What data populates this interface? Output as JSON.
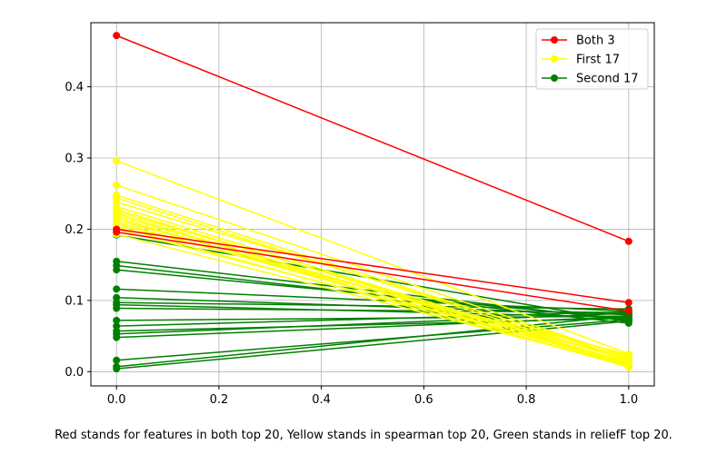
{
  "chart_data": {
    "type": "line",
    "x": [
      0,
      1
    ],
    "xlim": [
      -0.05,
      1.05
    ],
    "ylim": [
      -0.02,
      0.49
    ],
    "xticks": [
      "0.0",
      "0.2",
      "0.4",
      "0.6",
      "0.8",
      "1.0"
    ],
    "yticks": [
      "0.0",
      "0.1",
      "0.2",
      "0.3",
      "0.4"
    ],
    "grid": true,
    "legend_position": "top-right",
    "legend": [
      {
        "label": "Both 3",
        "color": "#ff0000"
      },
      {
        "label": "First 17",
        "color": "#ffff00"
      },
      {
        "label": "Second 17",
        "color": "#008000"
      }
    ],
    "series": [
      {
        "group": "Both 3",
        "color": "#ff0000",
        "values": [
          0.472,
          0.183
        ]
      },
      {
        "group": "Both 3",
        "color": "#ff0000",
        "values": [
          0.2,
          0.097
        ]
      },
      {
        "group": "Both 3",
        "color": "#ff0000",
        "values": [
          0.196,
          0.085
        ]
      },
      {
        "group": "First 17",
        "color": "#ffff00",
        "values": [
          0.296,
          0.025
        ]
      },
      {
        "group": "First 17",
        "color": "#ffff00",
        "values": [
          0.262,
          0.02
        ]
      },
      {
        "group": "First 17",
        "color": "#ffff00",
        "values": [
          0.248,
          0.018
        ]
      },
      {
        "group": "First 17",
        "color": "#ffff00",
        "values": [
          0.244,
          0.015
        ]
      },
      {
        "group": "First 17",
        "color": "#ffff00",
        "values": [
          0.238,
          0.022
        ]
      },
      {
        "group": "First 17",
        "color": "#ffff00",
        "values": [
          0.232,
          0.012
        ]
      },
      {
        "group": "First 17",
        "color": "#ffff00",
        "values": [
          0.228,
          0.01
        ]
      },
      {
        "group": "First 17",
        "color": "#ffff00",
        "values": [
          0.225,
          0.016
        ]
      },
      {
        "group": "First 17",
        "color": "#ffff00",
        "values": [
          0.222,
          0.008
        ]
      },
      {
        "group": "First 17",
        "color": "#ffff00",
        "values": [
          0.219,
          0.013
        ]
      },
      {
        "group": "First 17",
        "color": "#ffff00",
        "values": [
          0.216,
          0.006
        ]
      },
      {
        "group": "First 17",
        "color": "#ffff00",
        "values": [
          0.213,
          0.019
        ]
      },
      {
        "group": "First 17",
        "color": "#ffff00",
        "values": [
          0.21,
          0.011
        ]
      },
      {
        "group": "First 17",
        "color": "#ffff00",
        "values": [
          0.207,
          0.024
        ]
      },
      {
        "group": "First 17",
        "color": "#ffff00",
        "values": [
          0.204,
          0.007
        ]
      },
      {
        "group": "First 17",
        "color": "#ffff00",
        "values": [
          0.2,
          0.014
        ]
      },
      {
        "group": "First 17",
        "color": "#ffff00",
        "values": [
          0.193,
          0.009
        ]
      },
      {
        "group": "Second 17",
        "color": "#008000",
        "values": [
          0.192,
          0.07
        ]
      },
      {
        "group": "Second 17",
        "color": "#008000",
        "values": [
          0.155,
          0.072
        ]
      },
      {
        "group": "Second 17",
        "color": "#008000",
        "values": [
          0.149,
          0.068
        ]
      },
      {
        "group": "Second 17",
        "color": "#008000",
        "values": [
          0.143,
          0.074
        ]
      },
      {
        "group": "Second 17",
        "color": "#008000",
        "values": [
          0.116,
          0.085
        ]
      },
      {
        "group": "Second 17",
        "color": "#008000",
        "values": [
          0.104,
          0.08
        ]
      },
      {
        "group": "Second 17",
        "color": "#008000",
        "values": [
          0.097,
          0.088
        ]
      },
      {
        "group": "Second 17",
        "color": "#008000",
        "values": [
          0.094,
          0.076
        ]
      },
      {
        "group": "Second 17",
        "color": "#008000",
        "values": [
          0.089,
          0.083
        ]
      },
      {
        "group": "Second 17",
        "color": "#008000",
        "values": [
          0.072,
          0.078
        ]
      },
      {
        "group": "Second 17",
        "color": "#008000",
        "values": [
          0.064,
          0.084
        ]
      },
      {
        "group": "Second 17",
        "color": "#008000",
        "values": [
          0.057,
          0.075
        ]
      },
      {
        "group": "Second 17",
        "color": "#008000",
        "values": [
          0.053,
          0.082
        ]
      },
      {
        "group": "Second 17",
        "color": "#008000",
        "values": [
          0.048,
          0.077
        ]
      },
      {
        "group": "Second 17",
        "color": "#008000",
        "values": [
          0.016,
          0.073
        ]
      },
      {
        "group": "Second 17",
        "color": "#008000",
        "values": [
          0.007,
          0.079
        ]
      },
      {
        "group": "Second 17",
        "color": "#008000",
        "values": [
          0.004,
          0.071
        ]
      }
    ]
  },
  "caption": "Red stands for features in both top 20, Yellow stands in spearman top 20, Green stands in reliefF top 20."
}
